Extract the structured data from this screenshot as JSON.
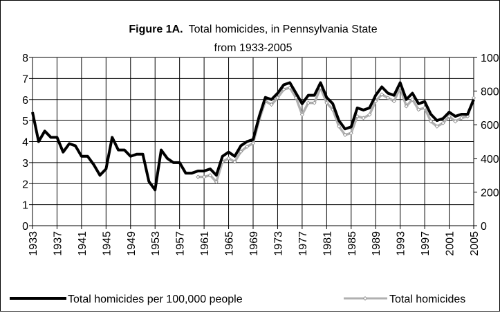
{
  "chart_data": {
    "type": "line",
    "title_prefix": "Figure 1A.",
    "title": "Total homicides, in Pennsylvania State",
    "subtitle": "from 1933-2005",
    "x": [
      1933,
      1934,
      1935,
      1936,
      1937,
      1938,
      1939,
      1940,
      1941,
      1942,
      1943,
      1944,
      1945,
      1946,
      1947,
      1948,
      1949,
      1950,
      1951,
      1952,
      1953,
      1954,
      1955,
      1956,
      1957,
      1958,
      1959,
      1960,
      1961,
      1962,
      1963,
      1964,
      1965,
      1966,
      1967,
      1968,
      1969,
      1970,
      1971,
      1972,
      1973,
      1974,
      1975,
      1976,
      1977,
      1978,
      1979,
      1980,
      1981,
      1982,
      1983,
      1984,
      1985,
      1986,
      1987,
      1988,
      1989,
      1990,
      1991,
      1992,
      1993,
      1994,
      1995,
      1996,
      1997,
      1998,
      1999,
      2000,
      2001,
      2002,
      2003,
      2004,
      2005
    ],
    "xlim": [
      1933,
      2005
    ],
    "xticks": [
      1933,
      1937,
      1941,
      1945,
      1949,
      1953,
      1957,
      1961,
      1965,
      1969,
      1973,
      1977,
      1981,
      1985,
      1989,
      1993,
      1997,
      2001,
      2005
    ],
    "ylim": [
      0,
      8
    ],
    "yticks": [
      0,
      1,
      2,
      3,
      4,
      5,
      6,
      7,
      8
    ],
    "y2lim": [
      0,
      1000
    ],
    "y2ticks": [
      0,
      200,
      400,
      600,
      800,
      1000
    ],
    "grid": true,
    "legend": "bottom",
    "series": [
      {
        "name": "Total homicides per 100,000 people",
        "color": "#000000",
        "values": [
          5.4,
          4.0,
          4.5,
          4.2,
          4.2,
          3.5,
          3.9,
          3.8,
          3.3,
          3.3,
          2.9,
          2.4,
          2.7,
          4.2,
          3.6,
          3.6,
          3.3,
          3.4,
          3.4,
          2.1,
          1.7,
          3.6,
          3.2,
          3.0,
          3.0,
          2.5,
          2.5,
          2.6,
          2.6,
          2.7,
          2.4,
          3.3,
          3.5,
          3.3,
          3.8,
          4.0,
          4.1,
          5.2,
          6.1,
          6.0,
          6.3,
          6.7,
          6.8,
          6.3,
          5.8,
          6.2,
          6.2,
          6.8,
          6.1,
          5.8,
          5.0,
          4.6,
          4.7,
          5.6,
          5.5,
          5.6,
          6.2,
          6.6,
          6.3,
          6.2,
          6.8,
          6.0,
          6.3,
          5.8,
          5.9,
          5.3,
          5.0,
          5.1,
          5.4,
          5.2,
          5.3,
          5.3,
          6.0
        ]
      },
      {
        "name": "Total homicides",
        "color": "#b0b0b0",
        "axis": "y2",
        "values": [
          null,
          null,
          null,
          null,
          null,
          null,
          null,
          null,
          null,
          null,
          null,
          null,
          null,
          null,
          null,
          null,
          null,
          null,
          null,
          null,
          null,
          null,
          null,
          null,
          null,
          null,
          null,
          290,
          290,
          300,
          260,
          380,
          400,
          380,
          440,
          470,
          490,
          630,
          740,
          720,
          760,
          810,
          820,
          760,
          660,
          730,
          730,
          820,
          730,
          690,
          590,
          540,
          550,
          650,
          640,
          660,
          740,
          780,
          760,
          740,
          820,
          710,
          750,
          690,
          700,
          620,
          590,
          610,
          650,
          620,
          640,
          650,
          760
        ]
      }
    ]
  }
}
